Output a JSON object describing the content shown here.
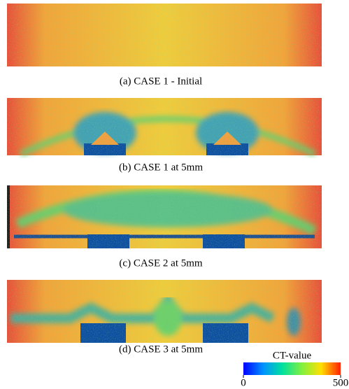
{
  "panels": [
    {
      "caption": "(a) CASE 1 - Initial"
    },
    {
      "caption": "(b) CASE 1 at 5mm"
    },
    {
      "caption": "(c) CASE 2 at 5mm"
    },
    {
      "caption": "(d) CASE 3 at 5mm"
    }
  ],
  "colorbar": {
    "label": "CT-value",
    "range": [
      0,
      500
    ],
    "ticks": [
      0,
      500
    ]
  }
}
